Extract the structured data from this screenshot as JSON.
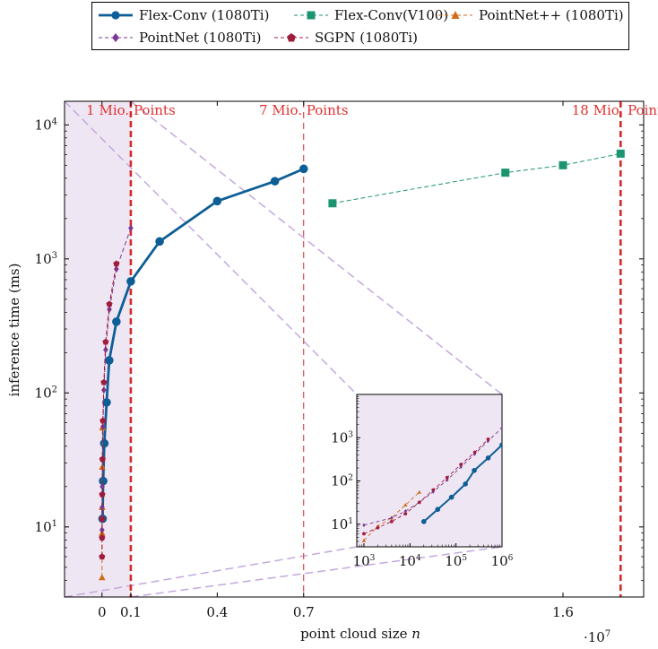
{
  "chart_data": {
    "type": "line",
    "xscale": "linear",
    "yscale": "log",
    "xlabel": "point cloud size",
    "xlabel_var": "n",
    "ylabel": "inference time (ms)",
    "x_multiplier_label": "·10",
    "x_multiplier_exp": "7",
    "xlim": [
      -1300000,
      18800000
    ],
    "ylim": [
      3,
      15000
    ],
    "x_ticks": [
      0,
      1000000,
      4000000,
      7000000,
      16000000
    ],
    "x_tick_labels": [
      "0",
      "0.1",
      "0.4",
      "0.7",
      "1.6"
    ],
    "y_ticks": [
      10,
      100,
      1000,
      10000
    ],
    "y_tick_bases": [
      "10",
      "10",
      "10",
      "10"
    ],
    "y_tick_exps": [
      "1",
      "2",
      "3",
      "4"
    ],
    "vlines": [
      {
        "x": 1000000,
        "label": "1 Mio. Points",
        "style": "thick"
      },
      {
        "x": 7000000,
        "label": "7 Mio. Points",
        "style": "thin"
      },
      {
        "x": 18000000,
        "label": "18 Mio. Points",
        "style": "thick"
      }
    ],
    "highlight_region": {
      "x0": -1300000,
      "x1": 1000000,
      "color": "#efe6f3"
    },
    "series": [
      {
        "name": "Flex-Conv (1080Ti)",
        "color": "#0d5e96",
        "marker": "circle",
        "line": "solid",
        "x": [
          20000,
          40000,
          80000,
          160000,
          250000,
          500000,
          1000000,
          2000000,
          4000000,
          6000000,
          7000000
        ],
        "y": [
          11.5,
          22,
          42,
          85,
          175,
          340,
          680,
          1350,
          2700,
          3800,
          4700
        ]
      },
      {
        "name": "Flex-Conv(V100)",
        "color": "#1a9570",
        "marker": "square",
        "line": "dashed",
        "x": [
          8000000,
          14000000,
          16000000,
          18000000
        ],
        "y": [
          2600,
          4400,
          5000,
          6100
        ]
      },
      {
        "name": "PointNet++ (1080Ti)",
        "color": "#d06a18",
        "marker": "triangle",
        "line": "dashed",
        "x": [
          1000,
          2000,
          4000,
          8000,
          16000
        ],
        "y": [
          4.2,
          9,
          14,
          28,
          55
        ]
      },
      {
        "name": "PointNet (1080Ti)",
        "color": "#7b3a92",
        "marker": "diamond",
        "line": "dashed",
        "x": [
          1000,
          4000,
          8000,
          16000,
          32000,
          64000,
          128000,
          256000,
          500000,
          1000000
        ],
        "y": [
          9.5,
          14,
          20,
          32,
          56,
          105,
          210,
          420,
          840,
          1700
        ]
      },
      {
        "name": "SGPN (1080Ti)",
        "color": "#a01c3c",
        "marker": "pentagon",
        "line": "dashed",
        "x": [
          1000,
          2000,
          4000,
          8000,
          16000,
          32000,
          64000,
          128000,
          256000,
          500000
        ],
        "y": [
          6,
          8.3,
          11.5,
          17.5,
          32,
          62,
          120,
          240,
          460,
          920
        ]
      }
    ],
    "inset": {
      "xscale": "log",
      "yscale": "log",
      "xlim": [
        700,
        1000000
      ],
      "ylim": [
        3,
        10000
      ],
      "x_ticks": [
        1000,
        10000,
        100000,
        1000000
      ],
      "x_tick_bases": [
        "10",
        "10",
        "10",
        "10"
      ],
      "x_tick_exps": [
        "3",
        "4",
        "5",
        "6"
      ],
      "y_ticks": [
        10,
        100,
        1000
      ],
      "y_tick_bases": [
        "10",
        "10",
        "10"
      ],
      "y_tick_exps": [
        "1",
        "2",
        "3"
      ]
    }
  }
}
